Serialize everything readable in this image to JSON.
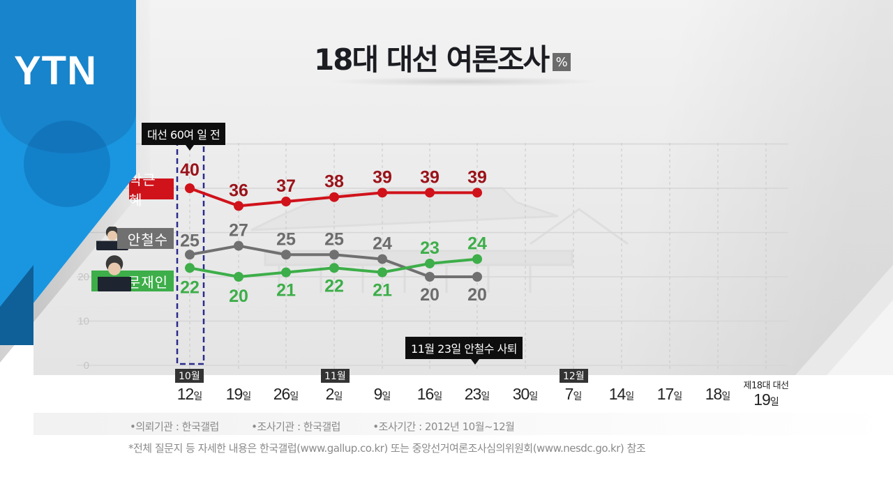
{
  "header": {
    "title": "18대 대선 여론조사",
    "unit": "%"
  },
  "logo": {
    "text": "YTN"
  },
  "annotations": {
    "start_callout": "대선 60여 일 전",
    "event_callout": "11월 23일 안철수 사퇴"
  },
  "legend": [
    {
      "name": "박근혜",
      "color": "#d0121b"
    },
    {
      "name": "안철수",
      "color": "#707070"
    },
    {
      "name": "문재인",
      "color": "#3dae49"
    }
  ],
  "months": [
    {
      "label": "10월",
      "at_index": 0
    },
    {
      "label": "11월",
      "at_index": 3
    },
    {
      "label": "12월",
      "at_index": 8
    }
  ],
  "final_label_top": "제18대 대선",
  "day_suffix": "일",
  "source": {
    "client": "•의뢰기관 : 한국갤럽",
    "pollster": "•조사기관 : 한국갤럽",
    "period": "•조사기간 : 2012년 10월~12월",
    "note": "*전체 질문지 등 자세한 내용은 한국갤럽(www.gallup.co.kr) 또는 중앙선거여론조사심의위원회(www.nesdc.go.kr) 참조"
  },
  "chart_data": {
    "type": "line",
    "title": "18대 대선 여론조사",
    "ylabel": "%",
    "xlabel": "",
    "ylim": [
      0,
      50
    ],
    "yticks": [
      0,
      10,
      20
    ],
    "grid": true,
    "categories": [
      "12일",
      "19일",
      "26일",
      "2일",
      "9일",
      "16일",
      "23일",
      "30일",
      "7일",
      "14일",
      "17일",
      "18일",
      "19일"
    ],
    "category_months": [
      "10월",
      "10월",
      "10월",
      "11월",
      "11월",
      "11월",
      "11월",
      "11월",
      "12월",
      "12월",
      "12월",
      "12월",
      "12월"
    ],
    "series": [
      {
        "name": "박근혜",
        "color": "#d0121b",
        "values": [
          40,
          36,
          37,
          38,
          39,
          39,
          39,
          null,
          null,
          null,
          null,
          null,
          null
        ]
      },
      {
        "name": "안철수",
        "color": "#707070",
        "values": [
          25,
          27,
          25,
          25,
          24,
          20,
          20,
          null,
          null,
          null,
          null,
          null,
          null
        ]
      },
      {
        "name": "문재인",
        "color": "#3dae49",
        "values": [
          22,
          20,
          21,
          22,
          21,
          23,
          24,
          null,
          null,
          null,
          null,
          null,
          null
        ]
      }
    ],
    "annotations": [
      {
        "text": "대선 60여 일 전",
        "x": "12일"
      },
      {
        "text": "11월 23일 안철수 사퇴",
        "x": "23일"
      }
    ],
    "legend_position": "left"
  }
}
